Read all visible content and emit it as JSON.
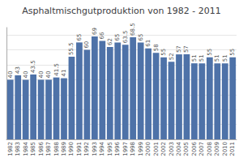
{
  "chart_data": {
    "type": "bar",
    "title": "Asphaltmischgutproduktion von 1982 - 2011",
    "categories": [
      "1982",
      "1983",
      "1984",
      "1985",
      "1986",
      "1987",
      "1988",
      "1989",
      "1990",
      "1991",
      "1992",
      "1993",
      "1994",
      "1995",
      "1996",
      "1997",
      "1998",
      "1999",
      "2000",
      "2001",
      "2002",
      "2003",
      "2004",
      "2005",
      "2006",
      "2007",
      "2008",
      "2009",
      "2010",
      "2011"
    ],
    "values": [
      40,
      43,
      40,
      43.5,
      40,
      40,
      41.5,
      41,
      55.5,
      65,
      60,
      69,
      66,
      62,
      65,
      63.5,
      68.5,
      65,
      61,
      58,
      55,
      52,
      57,
      57,
      51,
      51,
      55,
      51,
      51,
      55
    ],
    "color": "#4e72a8",
    "ylim": [
      0,
      75
    ],
    "yticks": [
      10,
      20,
      30,
      40,
      50,
      60,
      70
    ],
    "grid": true,
    "data_labels": true,
    "tick_labels": "x"
  }
}
